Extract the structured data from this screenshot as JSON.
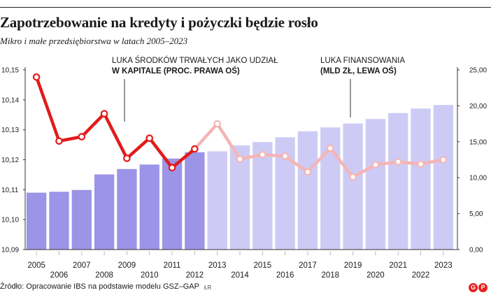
{
  "header": {
    "title": "Zapotrzebowanie na kredyty i pożyczki będzie rosło",
    "subtitle": "Mikro i małe przedsiębiorstwa w latach 2005–2023"
  },
  "annotations": {
    "capital_gap_line1": "LUKA ŚRODKÓW TRWAŁYCH JAKO UDZIAŁ",
    "capital_gap_line2": "W KAPITALE (PROC. PRAWA OŚ)",
    "financing_gap_line1": "LUKA FINANSOWANIA",
    "financing_gap_line2": "(MLD ZŁ, LEWA OŚ)"
  },
  "footer": {
    "source": "Źródło: Opracowanie IBS na podstawie modelu GSZ–GAP",
    "credit": "ŁR",
    "logo_text": [
      "G",
      "P"
    ]
  },
  "colors": {
    "bar_historical": "#9c94e6",
    "bar_forecast": "#cdcbf6",
    "line_historical": "#e21a1a",
    "line_forecast": "#f4b5b5",
    "dot_fill": "#ffffff",
    "logo": "#e8201d"
  },
  "chart_data": {
    "type": "bar+line",
    "categories": [
      "2005",
      "2006",
      "2007",
      "2008",
      "2009",
      "2010",
      "2011",
      "2012",
      "2013",
      "2014",
      "2015",
      "2016",
      "2017",
      "2018",
      "2019",
      "2020",
      "2021",
      "2022",
      "2023"
    ],
    "forecast_start": "2013",
    "left_axis": {
      "ticks": [
        "10,15",
        "10,14",
        "10,13",
        "10,12",
        "10,11",
        "10,10",
        "10,09"
      ],
      "ylim": [
        10.09,
        10.15
      ]
    },
    "right_axis": {
      "ticks": [
        "25,00",
        "20,00",
        "15,00",
        "10,00",
        "5,00",
        "0,00"
      ],
      "ylim": [
        0,
        25
      ]
    },
    "series": [
      {
        "name": "LUKA FINANSOWANIA (MLD ZŁ, LEWA OŚ)",
        "type": "bar",
        "values": [
          10.109,
          10.1093,
          10.1099,
          10.1151,
          10.1169,
          10.1184,
          10.1204,
          10.1225,
          10.1228,
          10.1248,
          10.1259,
          10.1275,
          10.1295,
          10.1308,
          10.1321,
          10.1336,
          10.1356,
          10.1371,
          10.1383
        ]
      },
      {
        "name": "LUKA ŚRODKÓW TRWAŁYCH JAKO UDZIAŁ W KAPITALE (PROC. PRAWA OŚ)",
        "type": "line",
        "values": [
          24.0,
          15.1,
          15.7,
          18.9,
          12.7,
          15.5,
          11.4,
          14.0,
          17.5,
          12.6,
          13.2,
          13.0,
          10.8,
          14.1,
          10.1,
          11.8,
          12.2,
          11.9,
          12.5
        ]
      }
    ]
  }
}
